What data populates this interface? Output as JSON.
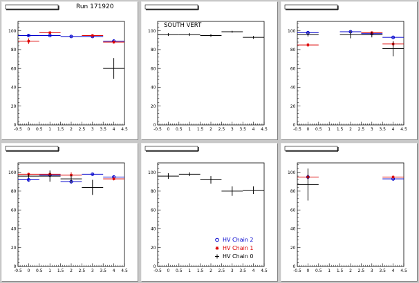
{
  "run_label": "Run 171920",
  "colors": {
    "chain2": "#0000cc",
    "chain1": "#dd0000",
    "chain0": "#000000"
  },
  "legend": [
    {
      "label": "HV Chain 2",
      "color": "#0000cc",
      "marker": "circle"
    },
    {
      "label": "HV Chain 1",
      "color": "#dd0000",
      "marker": "star"
    },
    {
      "label": "HV Chain 0",
      "color": "#000000",
      "marker": "cross"
    }
  ],
  "chart_data": [
    {
      "type": "scatter",
      "title": "",
      "annotation": "",
      "xlim": [
        -0.5,
        4.5
      ],
      "ylim": [
        0,
        110
      ],
      "xticks": [
        "-0.5",
        "0",
        "0.5",
        "1",
        "1.5",
        "2",
        "2.5",
        "3",
        "3.5",
        "4",
        "4.5"
      ],
      "yticks": [
        "0",
        "20",
        "40",
        "60",
        "80",
        "100"
      ],
      "series": [
        {
          "name": "HV Chain 2",
          "color": "#0000cc",
          "marker": "circle",
          "points": [
            {
              "x": 0,
              "y": 95,
              "err": 1.5
            },
            {
              "x": 1,
              "y": 95,
              "err": 1.5
            },
            {
              "x": 2,
              "y": 94,
              "err": 1
            },
            {
              "x": 3,
              "y": 94,
              "err": 1
            },
            {
              "x": 4,
              "y": 89,
              "err": 2
            }
          ]
        },
        {
          "name": "HV Chain 1",
          "color": "#dd0000",
          "marker": "star",
          "points": [
            {
              "x": 0,
              "y": 89,
              "err": 3
            },
            {
              "x": 1,
              "y": 98,
              "err": 1
            },
            {
              "x": 3,
              "y": 95,
              "err": 1
            },
            {
              "x": 4,
              "y": 88,
              "err": 1
            }
          ]
        },
        {
          "name": "HV Chain 0",
          "color": "#000000",
          "marker": "cross",
          "points": [
            {
              "x": 4,
              "y": 60,
              "err": 11
            }
          ]
        }
      ]
    },
    {
      "type": "scatter",
      "title": "",
      "annotation": "SOUTH VERT",
      "xlim": [
        -0.5,
        4.5
      ],
      "ylim": [
        0,
        110
      ],
      "xticks": [
        "-0.5",
        "0",
        "0.5",
        "1",
        "1.5",
        "2",
        "2.5",
        "3",
        "3.5",
        "4",
        "4.5"
      ],
      "yticks": [
        "0",
        "20",
        "40",
        "60",
        "80",
        "100"
      ],
      "series": [
        {
          "name": "HV Chain 0",
          "color": "#000000",
          "marker": "cross",
          "points": [
            {
              "x": 0,
              "y": 96,
              "err": 1.5
            },
            {
              "x": 1,
              "y": 96,
              "err": 1.5
            },
            {
              "x": 2,
              "y": 95,
              "err": 1.5
            },
            {
              "x": 3,
              "y": 99,
              "err": 1
            },
            {
              "x": 4,
              "y": 93,
              "err": 1.5
            }
          ]
        }
      ]
    },
    {
      "type": "scatter",
      "title": "",
      "annotation": "",
      "xlim": [
        -0.5,
        4.5
      ],
      "ylim": [
        0,
        110
      ],
      "xticks": [
        "-0.5",
        "0",
        "0.5",
        "1",
        "1.5",
        "2",
        "2.5",
        "3",
        "3.5",
        "4",
        "4.5"
      ],
      "yticks": [
        "0",
        "20",
        "40",
        "60",
        "80",
        "100"
      ],
      "series": [
        {
          "name": "HV Chain 2",
          "color": "#0000cc",
          "marker": "circle",
          "points": [
            {
              "x": 0,
              "y": 98,
              "err": 1
            },
            {
              "x": 2,
              "y": 99,
              "err": 1
            },
            {
              "x": 3,
              "y": 97,
              "err": 1
            },
            {
              "x": 4,
              "y": 93,
              "err": 1
            }
          ]
        },
        {
          "name": "HV Chain 1",
          "color": "#dd0000",
          "marker": "star",
          "points": [
            {
              "x": 0,
              "y": 85,
              "err": 2
            },
            {
              "x": 3,
              "y": 98,
              "err": 1
            },
            {
              "x": 4,
              "y": 86,
              "err": 3
            }
          ]
        },
        {
          "name": "HV Chain 0",
          "color": "#000000",
          "marker": "cross",
          "points": [
            {
              "x": 0,
              "y": 96,
              "err": 2
            },
            {
              "x": 2,
              "y": 96,
              "err": 4
            },
            {
              "x": 3,
              "y": 96,
              "err": 3
            },
            {
              "x": 4,
              "y": 81,
              "err": 8
            }
          ]
        }
      ]
    },
    {
      "type": "scatter",
      "title": "",
      "annotation": "",
      "xlim": [
        -0.5,
        4.5
      ],
      "ylim": [
        0,
        110
      ],
      "xticks": [
        "-0.5",
        "0",
        "0.5",
        "1",
        "1.5",
        "2",
        "2.5",
        "3",
        "3.5",
        "4",
        "4.5"
      ],
      "yticks": [
        "0",
        "20",
        "40",
        "60",
        "80",
        "100"
      ],
      "series": [
        {
          "name": "HV Chain 2",
          "color": "#0000cc",
          "marker": "circle",
          "points": [
            {
              "x": 0,
              "y": 92,
              "err": 2
            },
            {
              "x": 1,
              "y": 97,
              "err": 1
            },
            {
              "x": 2,
              "y": 90,
              "err": 2
            },
            {
              "x": 3,
              "y": 98,
              "err": 1
            },
            {
              "x": 4,
              "y": 95,
              "err": 1
            }
          ]
        },
        {
          "name": "HV Chain 1",
          "color": "#dd0000",
          "marker": "star",
          "points": [
            {
              "x": 0,
              "y": 98,
              "err": 1
            },
            {
              "x": 1,
              "y": 98,
              "err": 1
            },
            {
              "x": 2,
              "y": 97,
              "err": 3
            },
            {
              "x": 4,
              "y": 93,
              "err": 1
            }
          ]
        },
        {
          "name": "HV Chain 0",
          "color": "#000000",
          "marker": "cross",
          "points": [
            {
              "x": 0,
              "y": 96,
              "err": 2
            },
            {
              "x": 1,
              "y": 96,
              "err": 6
            },
            {
              "x": 2,
              "y": 93,
              "err": 4
            },
            {
              "x": 3,
              "y": 84,
              "err": 8
            }
          ]
        }
      ]
    },
    {
      "type": "scatter",
      "title": "",
      "annotation": "",
      "xlim": [
        -0.5,
        4.5
      ],
      "ylim": [
        0,
        110
      ],
      "xticks": [
        "-0.5",
        "0",
        "0.5",
        "1",
        "1.5",
        "2",
        "2.5",
        "3",
        "3.5",
        "4",
        "4.5"
      ],
      "yticks": [
        "0",
        "20",
        "40",
        "60",
        "80",
        "100"
      ],
      "series": [
        {
          "name": "HV Chain 0",
          "color": "#000000",
          "marker": "cross",
          "points": [
            {
              "x": 0,
              "y": 96,
              "err": 3
            },
            {
              "x": 1,
              "y": 98,
              "err": 2
            },
            {
              "x": 2,
              "y": 92,
              "err": 4
            },
            {
              "x": 3,
              "y": 80,
              "err": 5
            },
            {
              "x": 4,
              "y": 81,
              "err": 4
            }
          ]
        }
      ]
    },
    {
      "type": "scatter",
      "title": "",
      "annotation": "",
      "xlim": [
        -0.5,
        4.5
      ],
      "ylim": [
        0,
        110
      ],
      "xticks": [
        "-0.5",
        "0",
        "0.5",
        "1",
        "1.5",
        "2",
        "2.5",
        "3",
        "3.5",
        "4",
        "4.5"
      ],
      "yticks": [
        "0",
        "20",
        "40",
        "60",
        "80",
        "100"
      ],
      "series": [
        {
          "name": "HV Chain 2",
          "color": "#0000cc",
          "marker": "circle",
          "points": [
            {
              "x": 0,
              "y": 95,
              "err": 2
            },
            {
              "x": 4,
              "y": 93,
              "err": 2
            }
          ]
        },
        {
          "name": "HV Chain 1",
          "color": "#dd0000",
          "marker": "star",
          "points": [
            {
              "x": 0,
              "y": 95,
              "err": 3
            },
            {
              "x": 4,
              "y": 95,
              "err": 1
            }
          ]
        },
        {
          "name": "HV Chain 0",
          "color": "#000000",
          "marker": "cross",
          "points": [
            {
              "x": 0,
              "y": 87,
              "err": 17
            }
          ]
        }
      ]
    }
  ]
}
